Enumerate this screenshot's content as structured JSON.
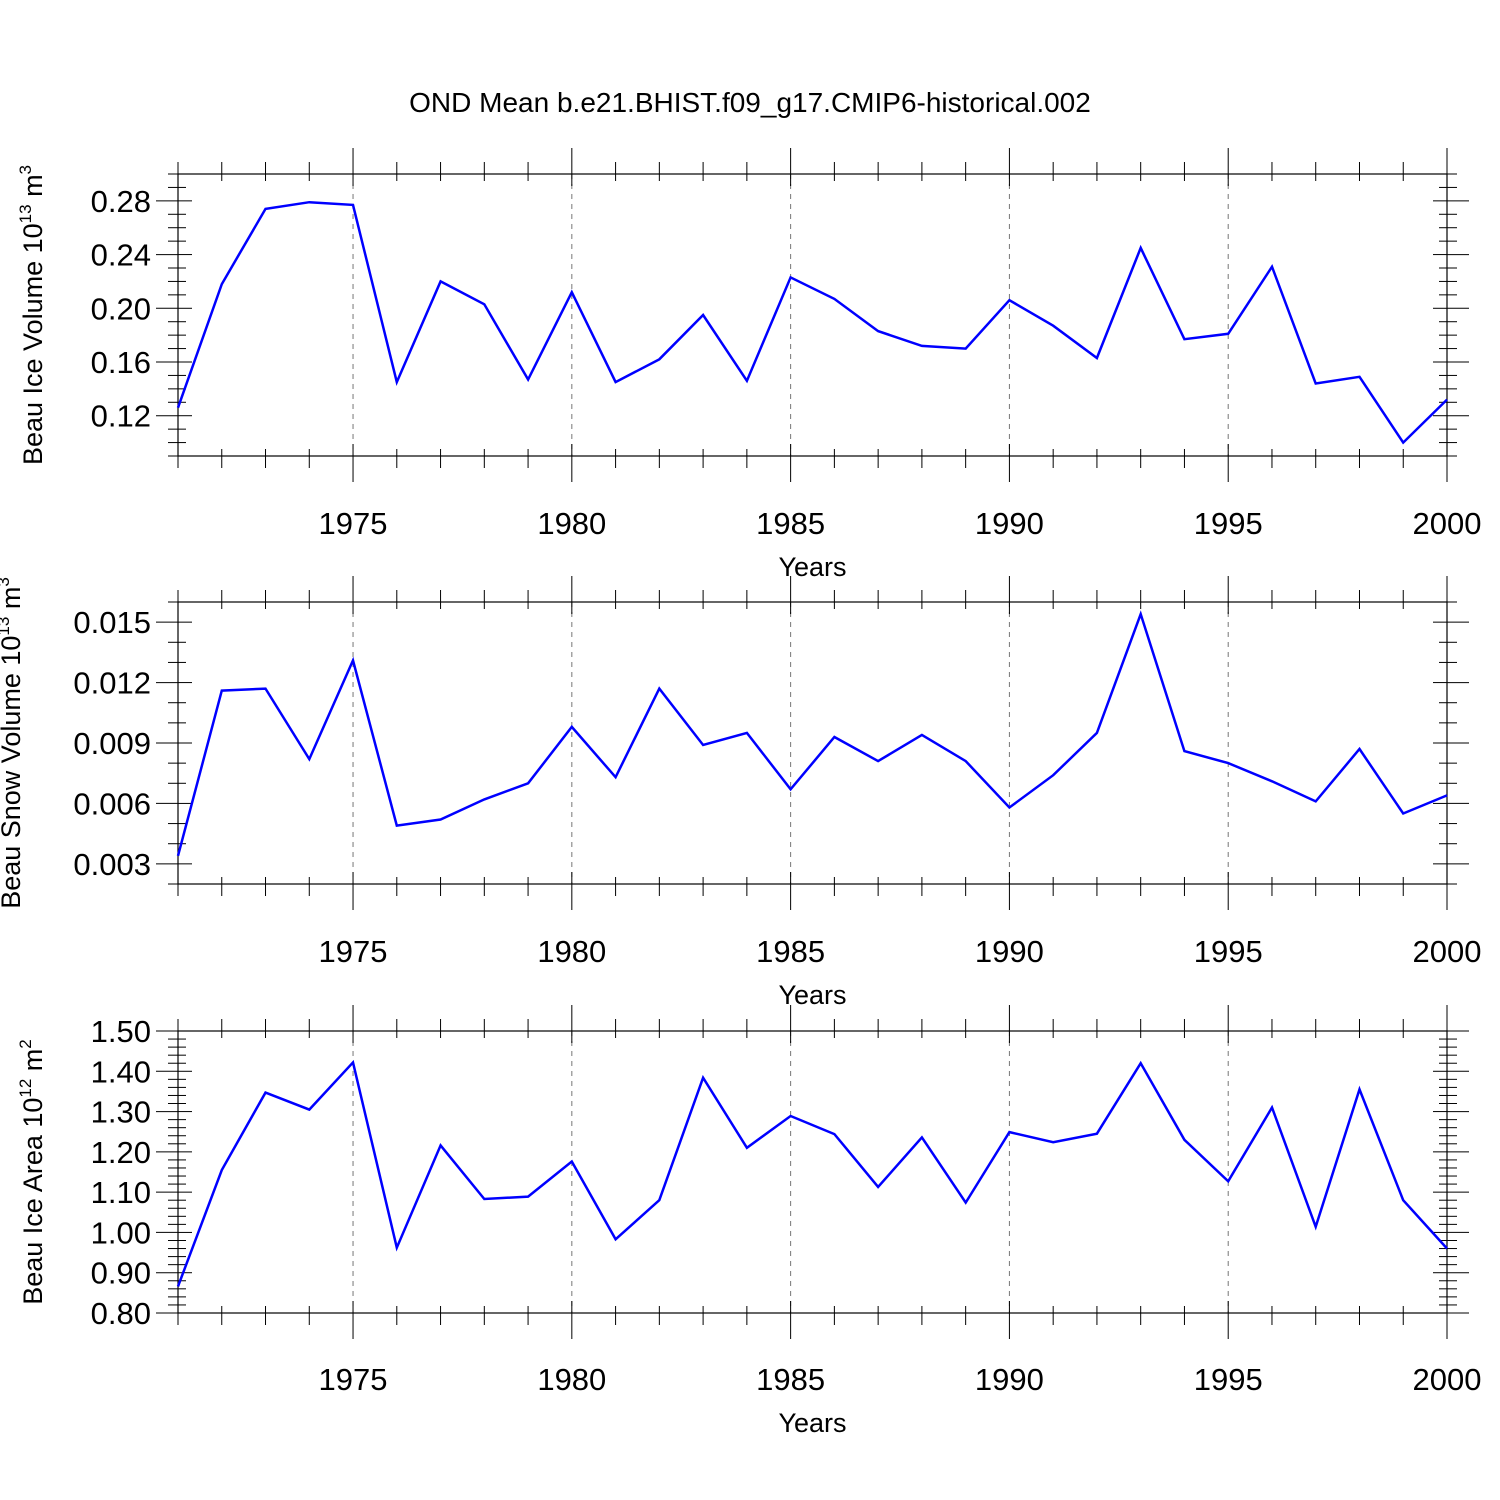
{
  "title": "OND Mean b.e21.BHIST.f09_g17.CMIP6-historical.002",
  "colors": {
    "series": "#0000ff",
    "grid": "#777777",
    "axes": "#000000"
  },
  "chart_data": [
    {
      "type": "line",
      "ylabel": "Beau Ice Volume 10",
      "ylabel_sup": "13",
      "ylabel_unit": " m",
      "ylabel_unit_sup": "3",
      "xlabel": "Years",
      "xlim": [
        1971,
        2000
      ],
      "ylim": [
        0.09,
        0.3
      ],
      "xticks": [
        1975,
        1980,
        1985,
        1990,
        1995,
        2000
      ],
      "yticks": [
        0.12,
        0.16,
        0.2,
        0.24,
        0.28
      ],
      "ytick_labels": [
        "0.12",
        "0.16",
        "0.20",
        "0.24",
        "0.28"
      ],
      "yminor_step": 0.01,
      "grid": "vertical dashed at major x ticks",
      "x": [
        1971,
        1972,
        1973,
        1974,
        1975,
        1976,
        1977,
        1978,
        1979,
        1980,
        1981,
        1982,
        1983,
        1984,
        1985,
        1986,
        1987,
        1988,
        1989,
        1990,
        1991,
        1992,
        1993,
        1994,
        1995,
        1996,
        1997,
        1998,
        1999,
        2000
      ],
      "values": [
        0.126,
        0.218,
        0.274,
        0.279,
        0.277,
        0.145,
        0.22,
        0.203,
        0.147,
        0.212,
        0.145,
        0.162,
        0.195,
        0.146,
        0.223,
        0.207,
        0.183,
        0.172,
        0.17,
        0.206,
        0.187,
        0.163,
        0.245,
        0.177,
        0.181,
        0.231,
        0.144,
        0.149,
        0.1,
        0.132
      ]
    },
    {
      "type": "line",
      "ylabel": "Beau Snow Volume 10",
      "ylabel_sup": "13",
      "ylabel_unit": " m",
      "ylabel_unit_sup": "3",
      "xlabel": "Years",
      "xlim": [
        1971,
        2000
      ],
      "ylim": [
        0.002,
        0.016
      ],
      "xticks": [
        1975,
        1980,
        1985,
        1990,
        1995,
        2000
      ],
      "yticks": [
        0.003,
        0.006,
        0.009,
        0.012,
        0.015
      ],
      "ytick_labels": [
        "0.003",
        "0.006",
        "0.009",
        "0.012",
        "0.015"
      ],
      "yminor_step": 0.001,
      "grid": "vertical dashed at major x ticks",
      "x": [
        1971,
        1972,
        1973,
        1974,
        1975,
        1976,
        1977,
        1978,
        1979,
        1980,
        1981,
        1982,
        1983,
        1984,
        1985,
        1986,
        1987,
        1988,
        1989,
        1990,
        1991,
        1992,
        1993,
        1994,
        1995,
        1996,
        1997,
        1998,
        1999,
        2000
      ],
      "values": [
        0.0034,
        0.0116,
        0.0117,
        0.0082,
        0.0131,
        0.0049,
        0.0052,
        0.0062,
        0.007,
        0.0098,
        0.0073,
        0.0117,
        0.0089,
        0.0095,
        0.0067,
        0.0093,
        0.0081,
        0.0094,
        0.0081,
        0.0058,
        0.0074,
        0.0095,
        0.0154,
        0.0086,
        0.008,
        0.0071,
        0.0061,
        0.0087,
        0.0055,
        0.0064
      ]
    },
    {
      "type": "line",
      "ylabel": "Beau Ice Area 10",
      "ylabel_sup": "12",
      "ylabel_unit": " m",
      "ylabel_unit_sup": "2",
      "xlabel": "Years",
      "xlim": [
        1971,
        2000
      ],
      "ylim": [
        0.8,
        1.5
      ],
      "xticks": [
        1975,
        1980,
        1985,
        1990,
        1995,
        2000
      ],
      "yticks": [
        0.8,
        0.9,
        1.0,
        1.1,
        1.2,
        1.3,
        1.4,
        1.5
      ],
      "ytick_labels": [
        "0.80",
        "0.90",
        "1.00",
        "1.10",
        "1.20",
        "1.30",
        "1.40",
        "1.50"
      ],
      "yminor_step": 0.02,
      "grid": "vertical dashed at major x ticks",
      "x": [
        1971,
        1972,
        1973,
        1974,
        1975,
        1976,
        1977,
        1978,
        1979,
        1980,
        1981,
        1982,
        1983,
        1984,
        1985,
        1986,
        1987,
        1988,
        1989,
        1990,
        1991,
        1992,
        1993,
        1994,
        1995,
        1996,
        1997,
        1998,
        1999,
        2000
      ],
      "values": [
        0.866,
        1.155,
        1.347,
        1.305,
        1.422,
        0.962,
        1.216,
        1.083,
        1.089,
        1.176,
        0.983,
        1.08,
        1.384,
        1.21,
        1.289,
        1.244,
        1.113,
        1.236,
        1.074,
        1.249,
        1.224,
        1.245,
        1.42,
        1.23,
        1.127,
        1.31,
        1.014,
        1.355,
        1.08,
        0.96
      ]
    }
  ]
}
